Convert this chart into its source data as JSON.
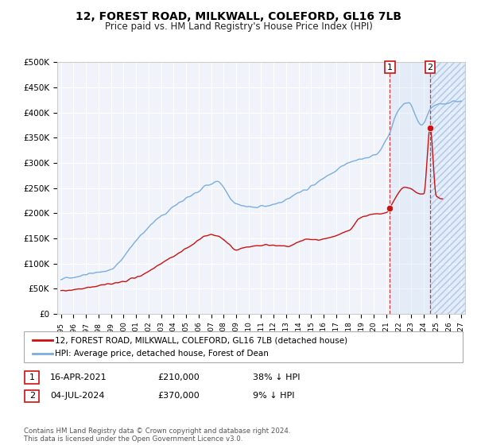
{
  "title": "12, FOREST ROAD, MILKWALL, COLEFORD, GL16 7LB",
  "subtitle": "Price paid vs. HM Land Registry's House Price Index (HPI)",
  "ylim": [
    0,
    500000
  ],
  "yticks": [
    0,
    50000,
    100000,
    150000,
    200000,
    250000,
    300000,
    350000,
    400000,
    450000,
    500000
  ],
  "ytick_labels": [
    "£0",
    "£50K",
    "£100K",
    "£150K",
    "£200K",
    "£250K",
    "£300K",
    "£350K",
    "£400K",
    "£450K",
    "£500K"
  ],
  "hpi_color": "#7aade0",
  "price_color": "#cc1111",
  "bg_color": "#f0f4fa",
  "grid_color": "#ffffff",
  "annotation1_date": "16-APR-2021",
  "annotation1_price": "£210,000",
  "annotation1_pct": "38% ↓ HPI",
  "annotation2_date": "04-JUL-2024",
  "annotation2_price": "£370,000",
  "annotation2_pct": "9% ↓ HPI",
  "legend_line1": "12, FOREST ROAD, MILKWALL, COLEFORD, GL16 7LB (detached house)",
  "legend_line2": "HPI: Average price, detached house, Forest of Dean",
  "footer": "Contains HM Land Registry data © Crown copyright and database right 2024.\nThis data is licensed under the Open Government Licence v3.0.",
  "sale1_x": 2021.29,
  "sale1_y": 210000,
  "sale2_x": 2024.5,
  "sale2_y": 370000,
  "xlim_left": 1995,
  "xlim_right": 2027,
  "xtick_years": [
    1995,
    1996,
    1997,
    1998,
    1999,
    2000,
    2001,
    2002,
    2003,
    2004,
    2005,
    2006,
    2007,
    2008,
    2009,
    2010,
    2011,
    2012,
    2013,
    2014,
    2015,
    2016,
    2017,
    2018,
    2019,
    2020,
    2021,
    2022,
    2023,
    2024,
    2025,
    2026,
    2027
  ]
}
